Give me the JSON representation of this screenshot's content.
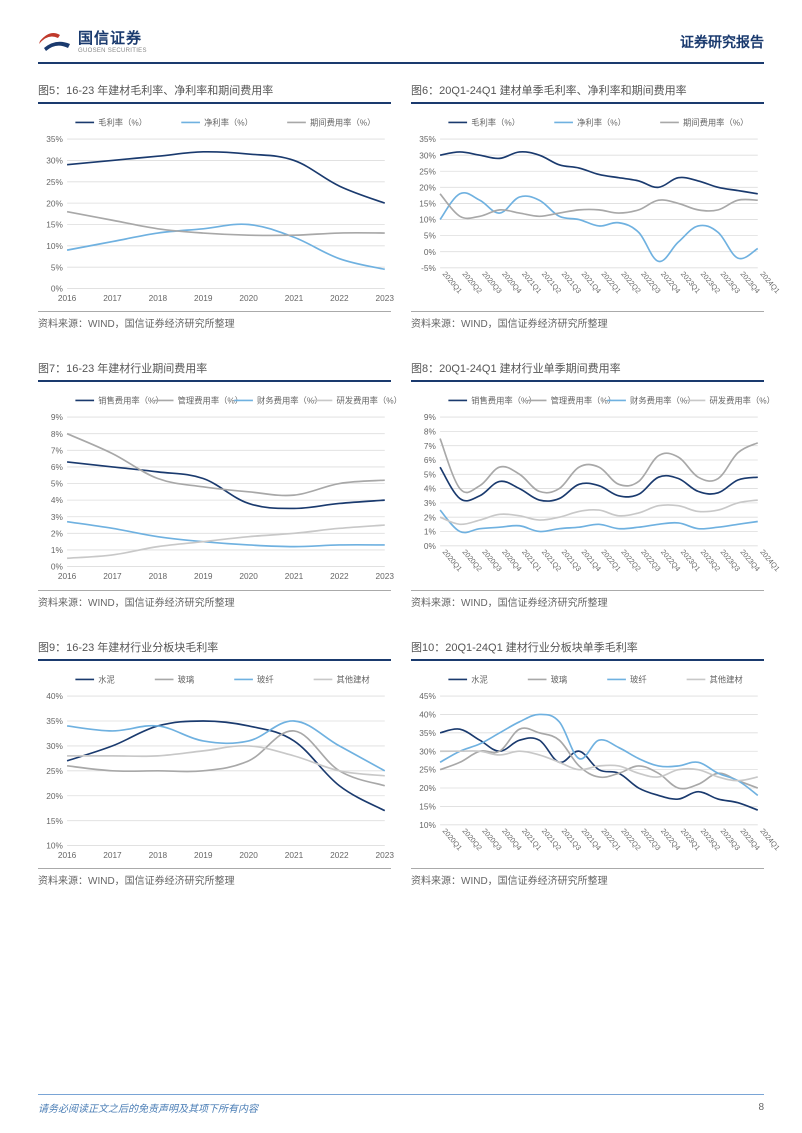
{
  "header": {
    "logo_cn": "国信证券",
    "logo_en": "GUOSEN SECURITIES",
    "report_type": "证券研究报告"
  },
  "footer": {
    "note": "请务必阅读正文之后的免责声明及其项下所有内容",
    "page_number": "8"
  },
  "source_text": "资料来源：WIND，国信证券经济研究所整理",
  "colors": {
    "primary_dark": "#1a3a6e",
    "series_dark": "#1a3a6e",
    "series_light_blue": "#6fb1e0",
    "series_gray": "#a8a8a8",
    "series_light_gray": "#c8c8c8",
    "grid": "#dddddd",
    "axis_text": "#666666",
    "bg": "#ffffff"
  },
  "charts": [
    {
      "id": "fig5",
      "title": "图5：16-23 年建材毛利率、净利率和期间费用率",
      "x_labels": [
        "2016",
        "2017",
        "2018",
        "2019",
        "2020",
        "2021",
        "2022",
        "2023"
      ],
      "y_min": 0,
      "y_max": 35,
      "y_step": 5,
      "y_suffix": "%",
      "x_rotate": false,
      "legend": [
        {
          "label": "毛利率（%）",
          "color": "#1a3a6e"
        },
        {
          "label": "净利率（%）",
          "color": "#6fb1e0"
        },
        {
          "label": "期间费用率（%）",
          "color": "#a8a8a8"
        }
      ],
      "series": [
        {
          "color": "#1a3a6e",
          "values": [
            29,
            30,
            31,
            32,
            31.5,
            30,
            24,
            20
          ]
        },
        {
          "color": "#6fb1e0",
          "values": [
            9,
            11,
            13,
            14,
            15,
            12,
            7,
            4.5
          ]
        },
        {
          "color": "#a8a8a8",
          "values": [
            18,
            16,
            14,
            13,
            12.5,
            12.5,
            13,
            13
          ]
        }
      ]
    },
    {
      "id": "fig6",
      "title": "图6：20Q1-24Q1 建材单季毛利率、净利率和期间费用率",
      "x_labels": [
        "2020Q1",
        "2020Q2",
        "2020Q3",
        "2020Q4",
        "2021Q1",
        "2021Q2",
        "2021Q3",
        "2021Q4",
        "2022Q1",
        "2022Q2",
        "2022Q3",
        "2022Q4",
        "2023Q1",
        "2023Q2",
        "2023Q3",
        "2023Q4",
        "2024Q1"
      ],
      "y_min": -5,
      "y_max": 35,
      "y_step": 5,
      "y_suffix": "%",
      "x_rotate": true,
      "legend": [
        {
          "label": "毛利率（%）",
          "color": "#1a3a6e"
        },
        {
          "label": "净利率（%）",
          "color": "#6fb1e0"
        },
        {
          "label": "期间费用率（%）",
          "color": "#a8a8a8"
        }
      ],
      "series": [
        {
          "color": "#1a3a6e",
          "values": [
            30,
            31,
            30,
            29,
            31,
            30,
            27,
            26,
            24,
            23,
            22,
            20,
            23,
            22,
            20,
            19,
            18
          ]
        },
        {
          "color": "#6fb1e0",
          "values": [
            10,
            18,
            16,
            12,
            17,
            16,
            11,
            10,
            8,
            9,
            6,
            -3,
            3,
            8,
            6,
            -2,
            1
          ]
        },
        {
          "color": "#a8a8a8",
          "values": [
            18,
            11,
            11,
            13,
            12,
            11,
            12,
            13,
            13,
            12,
            13,
            16,
            15,
            13,
            13,
            16,
            16
          ]
        }
      ]
    },
    {
      "id": "fig7",
      "title": "图7：16-23 年建材行业期间费用率",
      "x_labels": [
        "2016",
        "2017",
        "2018",
        "2019",
        "2020",
        "2021",
        "2022",
        "2023"
      ],
      "y_min": 0,
      "y_max": 9,
      "y_step": 1,
      "y_suffix": "%",
      "x_rotate": false,
      "legend": [
        {
          "label": "销售费用率（%）",
          "color": "#1a3a6e"
        },
        {
          "label": "管理费用率（%）",
          "color": "#a8a8a8"
        },
        {
          "label": "财务费用率（%）",
          "color": "#6fb1e0"
        },
        {
          "label": "研发费用率（%）",
          "color": "#c8c8c8"
        }
      ],
      "series": [
        {
          "color": "#1a3a6e",
          "values": [
            6.3,
            6.0,
            5.7,
            5.3,
            3.8,
            3.5,
            3.8,
            4.0
          ]
        },
        {
          "color": "#a8a8a8",
          "values": [
            8.0,
            6.8,
            5.3,
            4.8,
            4.5,
            4.3,
            5.0,
            5.2
          ]
        },
        {
          "color": "#6fb1e0",
          "values": [
            2.7,
            2.3,
            1.8,
            1.5,
            1.3,
            1.2,
            1.3,
            1.3
          ]
        },
        {
          "color": "#c8c8c8",
          "values": [
            0.5,
            0.7,
            1.2,
            1.5,
            1.8,
            2.0,
            2.3,
            2.5
          ]
        }
      ]
    },
    {
      "id": "fig8",
      "title": "图8：20Q1-24Q1 建材行业单季期间费用率",
      "x_labels": [
        "2020Q1",
        "2020Q2",
        "2020Q3",
        "2020Q4",
        "2021Q1",
        "2021Q2",
        "2021Q3",
        "2021Q4",
        "2022Q1",
        "2022Q2",
        "2022Q3",
        "2022Q4",
        "2023Q1",
        "2023Q2",
        "2023Q3",
        "2023Q4",
        "2024Q1"
      ],
      "y_min": 0,
      "y_max": 9,
      "y_step": 1,
      "y_suffix": "%",
      "x_rotate": true,
      "legend": [
        {
          "label": "销售费用率（%）",
          "color": "#1a3a6e"
        },
        {
          "label": "管理费用率（%）",
          "color": "#a8a8a8"
        },
        {
          "label": "财务费用率（%）",
          "color": "#6fb1e0"
        },
        {
          "label": "研发费用率（%）",
          "color": "#c8c8c8"
        }
      ],
      "series": [
        {
          "color": "#1a3a6e",
          "values": [
            5.5,
            3.3,
            3.5,
            4.5,
            4.0,
            3.2,
            3.3,
            4.3,
            4.2,
            3.5,
            3.6,
            4.8,
            4.7,
            3.8,
            3.7,
            4.6,
            4.8
          ]
        },
        {
          "color": "#a8a8a8",
          "values": [
            7.5,
            4.0,
            4.2,
            5.5,
            5.0,
            3.8,
            4.0,
            5.5,
            5.5,
            4.3,
            4.5,
            6.3,
            6.2,
            4.8,
            4.7,
            6.5,
            7.2
          ]
        },
        {
          "color": "#6fb1e0",
          "values": [
            2.5,
            1.0,
            1.2,
            1.3,
            1.4,
            1.0,
            1.2,
            1.3,
            1.5,
            1.2,
            1.3,
            1.5,
            1.6,
            1.2,
            1.3,
            1.5,
            1.7
          ]
        },
        {
          "color": "#c8c8c8",
          "values": [
            2.0,
            1.5,
            1.8,
            2.2,
            2.1,
            1.8,
            2.0,
            2.4,
            2.5,
            2.1,
            2.3,
            2.8,
            2.8,
            2.4,
            2.5,
            3.0,
            3.2
          ]
        }
      ]
    },
    {
      "id": "fig9",
      "title": "图9：16-23 年建材行业分板块毛利率",
      "x_labels": [
        "2016",
        "2017",
        "2018",
        "2019",
        "2020",
        "2021",
        "2022",
        "2023"
      ],
      "y_min": 10,
      "y_max": 40,
      "y_step": 5,
      "y_suffix": "%",
      "x_rotate": false,
      "legend": [
        {
          "label": "水泥",
          "color": "#1a3a6e"
        },
        {
          "label": "玻璃",
          "color": "#a8a8a8"
        },
        {
          "label": "玻纤",
          "color": "#6fb1e0"
        },
        {
          "label": "其他建材",
          "color": "#c8c8c8"
        }
      ],
      "series": [
        {
          "color": "#1a3a6e",
          "values": [
            27,
            30,
            34,
            35,
            34,
            31,
            22,
            17
          ]
        },
        {
          "color": "#a8a8a8",
          "values": [
            26,
            25,
            25,
            25,
            27,
            33,
            25,
            22
          ]
        },
        {
          "color": "#6fb1e0",
          "values": [
            34,
            33,
            34,
            31,
            31,
            35,
            30,
            25
          ]
        },
        {
          "color": "#c8c8c8",
          "values": [
            28,
            28,
            28,
            29,
            30,
            28,
            25,
            24
          ]
        }
      ]
    },
    {
      "id": "fig10",
      "title": "图10：20Q1-24Q1 建材行业分板块单季毛利率",
      "x_labels": [
        "2020Q1",
        "2020Q2",
        "2020Q3",
        "2020Q4",
        "2021Q1",
        "2021Q2",
        "2021Q3",
        "2021Q4",
        "2022Q1",
        "2022Q2",
        "2022Q3",
        "2022Q4",
        "2023Q1",
        "2023Q2",
        "2023Q3",
        "2023Q4",
        "2024Q1"
      ],
      "y_min": 10,
      "y_max": 45,
      "y_step": 5,
      "y_suffix": "%",
      "x_rotate": true,
      "legend": [
        {
          "label": "水泥",
          "color": "#1a3a6e"
        },
        {
          "label": "玻璃",
          "color": "#a8a8a8"
        },
        {
          "label": "玻纤",
          "color": "#6fb1e0"
        },
        {
          "label": "其他建材",
          "color": "#c8c8c8"
        }
      ],
      "series": [
        {
          "color": "#1a3a6e",
          "values": [
            35,
            36,
            33,
            30,
            33,
            33,
            27,
            30,
            25,
            24,
            20,
            18,
            17,
            19,
            17,
            16,
            14
          ]
        },
        {
          "color": "#a8a8a8",
          "values": [
            25,
            27,
            30,
            30,
            36,
            35,
            33,
            26,
            23,
            24,
            26,
            24,
            20,
            21,
            24,
            22,
            20
          ]
        },
        {
          "color": "#6fb1e0",
          "values": [
            27,
            30,
            32,
            35,
            38,
            40,
            38,
            28,
            33,
            31,
            28,
            26,
            26,
            27,
            24,
            22,
            18
          ]
        },
        {
          "color": "#c8c8c8",
          "values": [
            30,
            30,
            30,
            29,
            30,
            29,
            27,
            25,
            26,
            26,
            24,
            23,
            25,
            25,
            23,
            22,
            23
          ]
        }
      ]
    }
  ]
}
